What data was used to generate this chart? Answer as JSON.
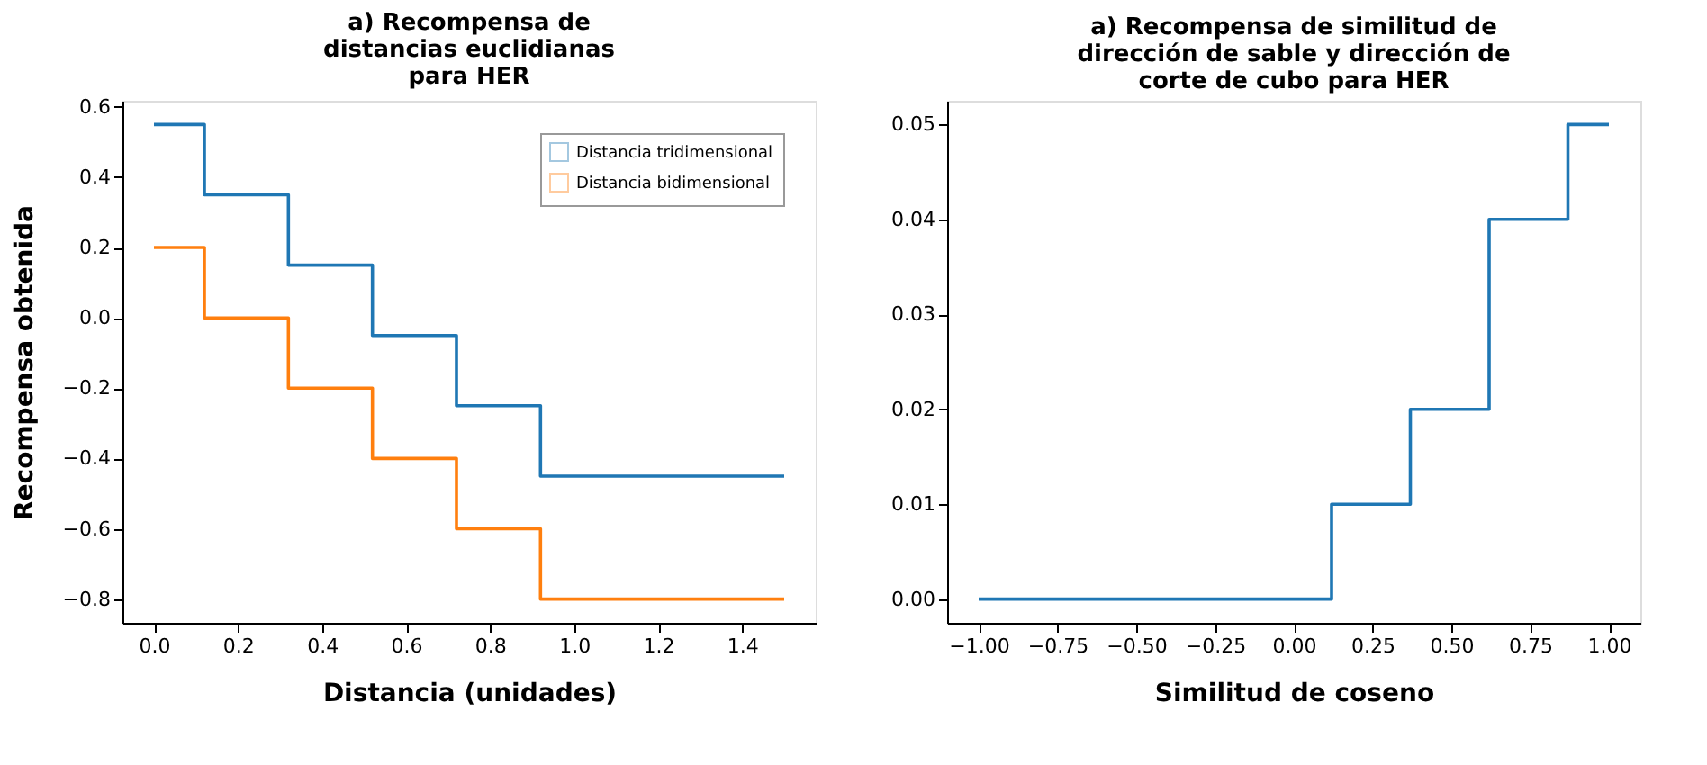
{
  "chart_data": [
    {
      "type": "step",
      "title": "a) Recompensa de\ndistancias euclidianas\npara HER",
      "xlabel": "Distancia (unidades)",
      "ylabel": "Recompensa obtenida",
      "x": [
        0,
        0.12,
        0.32,
        0.52,
        0.72,
        0.92,
        1.5
      ],
      "series": [
        {
          "name": "Distancia tridimensional",
          "color": "#1f77b4",
          "values": [
            0.55,
            0.35,
            0.15,
            -0.05,
            -0.25,
            -0.45,
            -0.45
          ]
        },
        {
          "name": "Distancia bidimensional",
          "color": "#ff7f0e",
          "values": [
            0.2,
            0,
            -0.2,
            -0.4,
            -0.6,
            -0.8,
            -0.8
          ]
        }
      ],
      "xlim": [
        -0.075,
        1.575
      ],
      "xticks": [
        {
          "value": 0,
          "label": "0.0"
        },
        {
          "value": 0.2,
          "label": "0.2"
        },
        {
          "value": 0.4,
          "label": "0.4"
        },
        {
          "value": 0.6,
          "label": "0.6"
        },
        {
          "value": 0.8,
          "label": "0.8"
        },
        {
          "value": 1,
          "label": "1.0"
        },
        {
          "value": 1.2,
          "label": "1.2"
        },
        {
          "value": 1.4,
          "label": "1.4"
        }
      ],
      "ylim": [
        -0.8675,
        0.6175
      ],
      "yticks": [
        {
          "value": -0.8,
          "label": "−0.8"
        },
        {
          "value": -0.6,
          "label": "−0.6"
        },
        {
          "value": -0.4,
          "label": "−0.4"
        },
        {
          "value": -0.2,
          "label": "−0.2"
        },
        {
          "value": 0,
          "label": "0.0"
        },
        {
          "value": 0.2,
          "label": "0.2"
        },
        {
          "value": 0.4,
          "label": "0.4"
        },
        {
          "value": 0.6,
          "label": "0.6"
        }
      ],
      "grid": false,
      "legend": "top right"
    },
    {
      "type": "step",
      "title": "a) Recompensa de similitud de\ndirección de sable y dirección de\ncorte de cubo para HER",
      "xlabel": "Similitud de coseno",
      "x": [
        -1,
        0.12,
        0.37,
        0.62,
        0.87,
        1.0
      ],
      "series": [
        {
          "color": "#1f77b4",
          "values": [
            0,
            0.01,
            0.02,
            0.04,
            0.05,
            0.05
          ]
        }
      ],
      "xlim": [
        -1.1,
        1.1
      ],
      "xticks": [
        {
          "value": -1,
          "label": "−1.00"
        },
        {
          "value": -0.75,
          "label": "−0.75"
        },
        {
          "value": -0.5,
          "label": "−0.50"
        },
        {
          "value": -0.25,
          "label": "−0.25"
        },
        {
          "value": 0,
          "label": "0.00"
        },
        {
          "value": 0.25,
          "label": "0.25"
        },
        {
          "value": 0.5,
          "label": "0.50"
        },
        {
          "value": 0.75,
          "label": "0.75"
        },
        {
          "value": 1,
          "label": "1.00"
        }
      ],
      "ylim": [
        -0.0025,
        0.0525
      ],
      "yticks": [
        {
          "value": 0,
          "label": "0.00"
        },
        {
          "value": 0.01,
          "label": "0.01"
        },
        {
          "value": 0.02,
          "label": "0.02"
        },
        {
          "value": 0.03,
          "label": "0.03"
        },
        {
          "value": 0.04,
          "label": "0.04"
        },
        {
          "value": 0.05,
          "label": "0.05"
        }
      ],
      "grid": false,
      "legend": false
    }
  ]
}
